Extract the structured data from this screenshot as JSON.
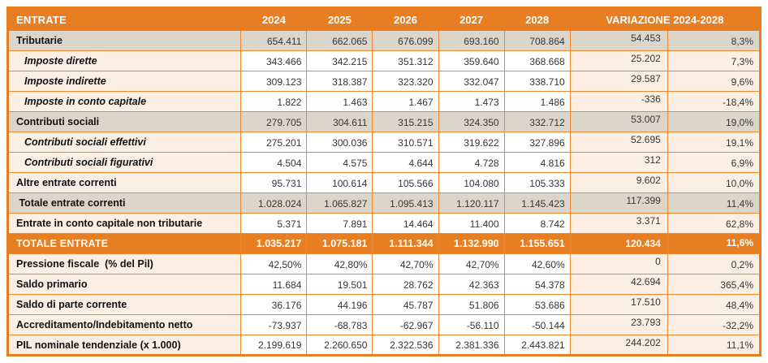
{
  "colors": {
    "orange": "#E87E22",
    "orange_line": "#ED8733",
    "section_bg": "#DBD6C9",
    "peach_bg": "#FBEEE2",
    "number_text": "#363636"
  },
  "table": {
    "header": {
      "entrate_label": "ENTRATE",
      "years": [
        "2024",
        "2025",
        "2026",
        "2027",
        "2028"
      ],
      "variation_label": "VARIAZIONE 2024-2028"
    },
    "rows": [
      {
        "type": "section",
        "label": "Tributarie",
        "values": [
          "654.411",
          "662.065",
          "676.099",
          "693.160",
          "708.864"
        ],
        "variation": "54.453",
        "variation_pct": "8,3%"
      },
      {
        "type": "sub",
        "label": "Imposte dirette",
        "values": [
          "343.466",
          "342.215",
          "351.312",
          "359.640",
          "368.668"
        ],
        "variation": "25.202",
        "variation_pct": "7,3%"
      },
      {
        "type": "sub",
        "label": "Imposte indirette",
        "values": [
          "309.123",
          "318.387",
          "323.320",
          "332.047",
          "338.710"
        ],
        "variation": "29.587",
        "variation_pct": "9,6%"
      },
      {
        "type": "sub",
        "label": "Imposte in conto capitale",
        "values": [
          "1.822",
          "1.463",
          "1.467",
          "1.473",
          "1.486"
        ],
        "variation": "-336",
        "variation_pct": "-18,4%"
      },
      {
        "type": "section",
        "label": "Contributi sociali",
        "values": [
          "279.705",
          "304.611",
          "315.215",
          "324.350",
          "332.712"
        ],
        "variation": "53.007",
        "variation_pct": "19,0%"
      },
      {
        "type": "sub",
        "label": "Contributi sociali effettivi",
        "values": [
          "275.201",
          "300.036",
          "310.571",
          "319.622",
          "327.896"
        ],
        "variation": "52.695",
        "variation_pct": "19,1%"
      },
      {
        "type": "sub",
        "label": "Contributi sociali figurativi",
        "values": [
          "4.504",
          "4.575",
          "4.644",
          "4.728",
          "4.816"
        ],
        "variation": "312",
        "variation_pct": "6,9%"
      },
      {
        "type": "item",
        "label": "Altre entrate correnti",
        "values": [
          "95.731",
          "100.614",
          "105.566",
          "104.080",
          "105.333"
        ],
        "variation": "9.602",
        "variation_pct": "10,0%"
      },
      {
        "type": "section",
        "label": " Totale entrate correnti",
        "values": [
          "1.028.024",
          "1.065.827",
          "1.095.413",
          "1.120.117",
          "1.145.423"
        ],
        "variation": "117.399",
        "variation_pct": "11,4%"
      },
      {
        "type": "item",
        "label": "Entrate in conto capitale non tributarie",
        "values": [
          "5.371",
          "7.891",
          "14.464",
          "11.400",
          "8.742"
        ],
        "variation": "3.371",
        "variation_pct": "62,8%"
      },
      {
        "type": "total",
        "label": "TOTALE ENTRATE",
        "values": [
          "1.035.217",
          "1.075.181",
          "1.111.344",
          "1.132.990",
          "1.155.651"
        ],
        "variation": "120.434",
        "variation_pct": "11,6%"
      },
      {
        "type": "item",
        "label": "Pressione fiscale  (% del Pil)",
        "values": [
          "42,50%",
          "42,80%",
          "42,70%",
          "42,70%",
          "42,60%"
        ],
        "variation": "0",
        "variation_pct": "0,2%"
      },
      {
        "type": "item",
        "label": "Saldo primario",
        "values": [
          "11.684",
          "19.501",
          "28.762",
          "42.363",
          "54.378"
        ],
        "variation": "42.694",
        "variation_pct": "365,4%"
      },
      {
        "type": "item",
        "label": "Saldo di parte corrente",
        "values": [
          "36.176",
          "44.196",
          "45.787",
          "51.806",
          "53.686"
        ],
        "variation": "17.510",
        "variation_pct": "48,4%"
      },
      {
        "type": "item",
        "label": "Accreditamento/Indebitamento netto",
        "values": [
          "-73.937",
          "-68.783",
          "-62.967",
          "-56.110",
          "-50.144"
        ],
        "variation": "23.793",
        "variation_pct": "-32,2%"
      },
      {
        "type": "item",
        "label": "PIL nominale tendenziale (x 1.000)",
        "values": [
          "2.199.619",
          "2.260.650",
          "2.322.536",
          "2.381.336",
          "2.443.821"
        ],
        "variation": "244.202",
        "variation_pct": "11,1%"
      }
    ]
  }
}
